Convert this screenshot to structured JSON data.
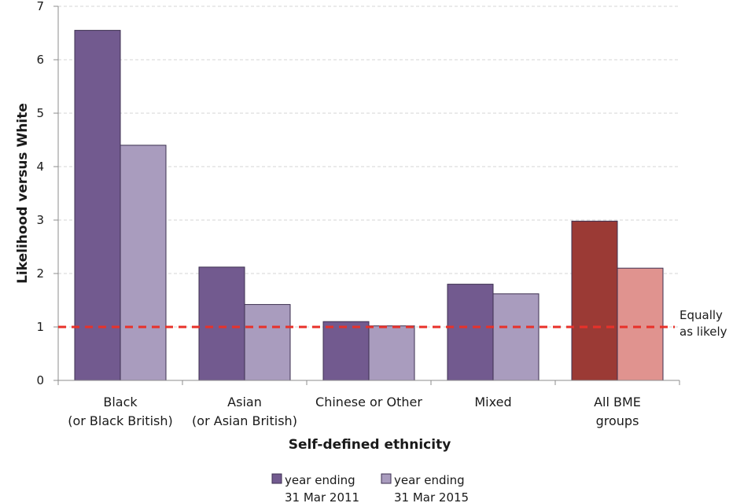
{
  "chart_data": {
    "type": "bar",
    "xlabel": "Self-defined ethnicity",
    "ylabel": "Likelihood versus White",
    "ylim": [
      0,
      7
    ],
    "yticks": [
      0,
      1,
      2,
      3,
      4,
      5,
      6,
      7
    ],
    "grid": "horizontal dashed",
    "categories": [
      [
        "Black",
        "(or Black British)"
      ],
      [
        "Asian",
        "(or Asian British)"
      ],
      [
        "Chinese or Other"
      ],
      [
        "Mixed"
      ],
      [
        "All BME",
        "groups"
      ]
    ],
    "series": [
      {
        "name": [
          "year ending",
          "31 Mar 2011"
        ],
        "color": "#725a8f",
        "values": [
          6.55,
          2.12,
          1.1,
          1.8,
          2.98
        ],
        "highlight": {
          "index": 4,
          "color": "#9b3a35"
        }
      },
      {
        "name": [
          "year ending",
          "31 Mar 2015"
        ],
        "color": "#a99cbe",
        "values": [
          4.4,
          1.42,
          1.02,
          1.62,
          2.1
        ],
        "highlight": {
          "index": 4,
          "color": "#e0938f"
        }
      }
    ],
    "reference_line": {
      "value": 1,
      "label": [
        "Equally",
        "as likely"
      ],
      "color": "#e8312a",
      "style": "dashed"
    },
    "legend_position": "bottom-center"
  }
}
